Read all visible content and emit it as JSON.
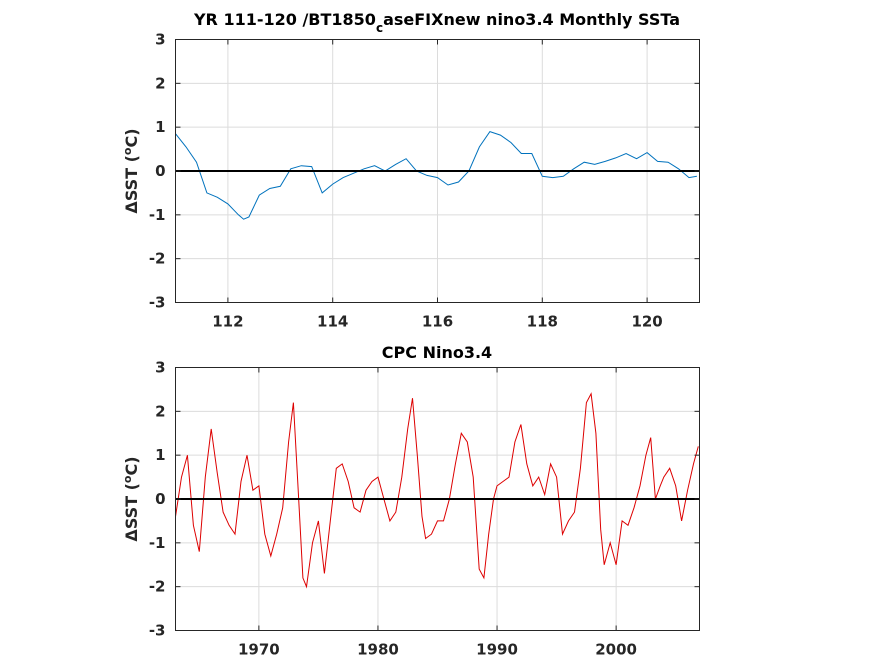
{
  "figure": {
    "panels": [
      {
        "title_main": "YR 111-120 /BT1850",
        "title_sub": "c",
        "title_tail": "aseFIXnew nino3.4 Monthly SSTa",
        "ylabel_delta": "Δ",
        "ylabel_text": "SST (",
        "ylabel_sup": "o",
        "ylabel_unit": "C)",
        "xtick_labels": [
          "112",
          "114",
          "116",
          "118",
          "120"
        ],
        "ytick_labels": [
          "-3",
          "-2",
          "-1",
          "0",
          "1",
          "2",
          "3"
        ]
      },
      {
        "title": "CPC Nino3.4",
        "ylabel_delta": "Δ",
        "ylabel_text": "SST (",
        "ylabel_sup": "o",
        "ylabel_unit": "C)",
        "xtick_labels": [
          "1970",
          "1980",
          "1990",
          "2000"
        ],
        "ytick_labels": [
          "-3",
          "-2",
          "-1",
          "0",
          "1",
          "2",
          "3"
        ]
      }
    ]
  },
  "chart_data": [
    {
      "type": "line",
      "title": "YR 111-120 /BT1850caseFIXnew nino3.4 Monthly SSTa",
      "xlabel": "",
      "ylabel": "ΔSST (°C)",
      "xlim": [
        111,
        121
      ],
      "ylim": [
        -3,
        3
      ],
      "xticks": [
        112,
        114,
        116,
        118,
        120
      ],
      "yticks": [
        -3,
        -2,
        -1,
        0,
        1,
        2,
        3
      ],
      "grid": true,
      "reference_line": 0,
      "color": "#0072BD",
      "series": [
        {
          "x": [
            111.0,
            111.2,
            111.4,
            111.6,
            111.8,
            112.0,
            112.2,
            112.3,
            112.4,
            112.6,
            112.8,
            113.0,
            113.2,
            113.4,
            113.6,
            113.8,
            114.0,
            114.2,
            114.4,
            114.6,
            114.8,
            115.0,
            115.2,
            115.4,
            115.6,
            115.8,
            116.0,
            116.2,
            116.4,
            116.6,
            116.8,
            117.0,
            117.2,
            117.4,
            117.6,
            117.8,
            118.0,
            118.2,
            118.4,
            118.6,
            118.8,
            119.0,
            119.2,
            119.4,
            119.6,
            119.8,
            120.0,
            120.2,
            120.4,
            120.6,
            120.8,
            120.95
          ],
          "y": [
            0.85,
            0.55,
            0.2,
            -0.5,
            -0.6,
            -0.75,
            -1.0,
            -1.1,
            -1.05,
            -0.55,
            -0.4,
            -0.35,
            0.05,
            0.12,
            0.1,
            -0.5,
            -0.3,
            -0.15,
            -0.05,
            0.05,
            0.12,
            0.0,
            0.15,
            0.28,
            0.0,
            -0.1,
            -0.15,
            -0.32,
            -0.25,
            0.0,
            0.55,
            0.9,
            0.82,
            0.65,
            0.4,
            0.4,
            -0.12,
            -0.15,
            -0.12,
            0.05,
            0.2,
            0.15,
            0.22,
            0.3,
            0.4,
            0.28,
            0.42,
            0.22,
            0.2,
            0.05,
            -0.15,
            -0.12
          ]
        }
      ]
    },
    {
      "type": "line",
      "title": "CPC Nino3.4",
      "xlabel": "",
      "ylabel": "ΔSST (°C)",
      "xlim": [
        1963,
        2007
      ],
      "ylim": [
        -3,
        3
      ],
      "xticks": [
        1970,
        1980,
        1990,
        2000
      ],
      "yticks": [
        -3,
        -2,
        -1,
        0,
        1,
        2,
        3
      ],
      "grid": true,
      "reference_line": 0,
      "color": "#DD0000",
      "series": [
        {
          "x": [
            1963.0,
            1963.5,
            1964.0,
            1964.5,
            1965.0,
            1965.5,
            1966.0,
            1966.5,
            1967.0,
            1967.5,
            1968.0,
            1968.5,
            1969.0,
            1969.5,
            1970.0,
            1970.5,
            1971.0,
            1971.5,
            1972.0,
            1972.5,
            1972.9,
            1973.3,
            1973.7,
            1974.0,
            1974.5,
            1975.0,
            1975.5,
            1976.0,
            1976.5,
            1977.0,
            1977.5,
            1978.0,
            1978.5,
            1979.0,
            1979.5,
            1980.0,
            1980.5,
            1981.0,
            1981.5,
            1982.0,
            1982.5,
            1982.9,
            1983.3,
            1983.7,
            1984.0,
            1984.5,
            1985.0,
            1985.5,
            1986.0,
            1986.5,
            1987.0,
            1987.5,
            1988.0,
            1988.5,
            1988.9,
            1989.3,
            1989.7,
            1990.0,
            1990.5,
            1991.0,
            1991.5,
            1992.0,
            1992.5,
            1993.0,
            1993.5,
            1994.0,
            1994.5,
            1995.0,
            1995.5,
            1996.0,
            1996.5,
            1997.0,
            1997.5,
            1997.9,
            1998.3,
            1998.7,
            1999.0,
            1999.5,
            2000.0,
            2000.5,
            2001.0,
            2001.5,
            2002.0,
            2002.5,
            2002.9,
            2003.3,
            2003.7,
            2004.0,
            2004.5,
            2005.0,
            2005.5,
            2006.0,
            2006.5,
            2006.9
          ],
          "y": [
            -0.4,
            0.5,
            1.0,
            -0.6,
            -1.2,
            0.5,
            1.6,
            0.6,
            -0.3,
            -0.6,
            -0.8,
            0.4,
            1.0,
            0.2,
            0.3,
            -0.8,
            -1.3,
            -0.8,
            -0.2,
            1.3,
            2.2,
            0.2,
            -1.8,
            -2.0,
            -1.0,
            -0.5,
            -1.7,
            -0.5,
            0.7,
            0.8,
            0.4,
            -0.2,
            -0.3,
            0.2,
            0.4,
            0.5,
            0.0,
            -0.5,
            -0.3,
            0.5,
            1.6,
            2.3,
            1.0,
            -0.4,
            -0.9,
            -0.8,
            -0.5,
            -0.5,
            0.0,
            0.8,
            1.5,
            1.3,
            0.5,
            -1.6,
            -1.8,
            -0.8,
            0.0,
            0.3,
            0.4,
            0.5,
            1.3,
            1.7,
            0.8,
            0.3,
            0.5,
            0.1,
            0.8,
            0.5,
            -0.8,
            -0.5,
            -0.3,
            0.7,
            2.2,
            2.4,
            1.5,
            -0.7,
            -1.5,
            -1.0,
            -1.5,
            -0.5,
            -0.6,
            -0.2,
            0.3,
            1.0,
            1.4,
            0.0,
            0.3,
            0.5,
            0.7,
            0.3,
            -0.5,
            0.2,
            0.8,
            1.2
          ]
        }
      ]
    }
  ]
}
